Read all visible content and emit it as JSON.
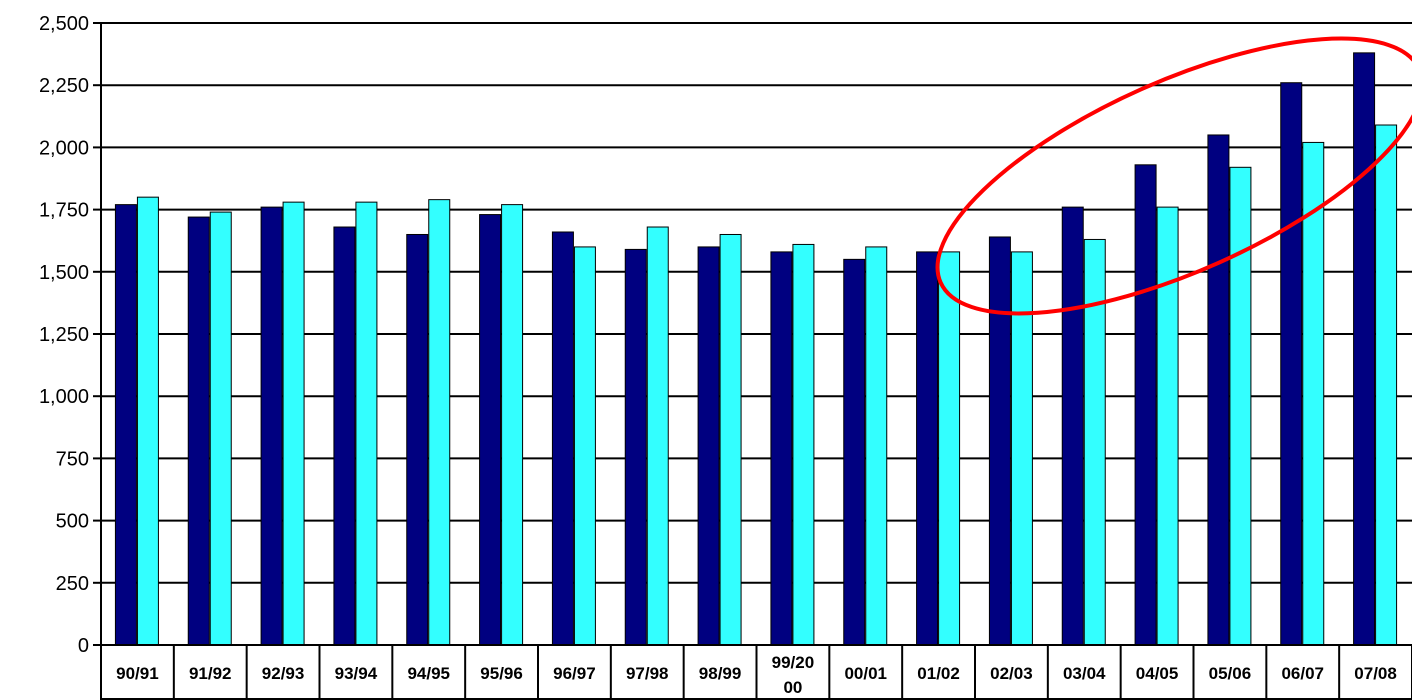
{
  "chart_data": {
    "type": "bar",
    "title": "",
    "xlabel": "",
    "ylabel": "",
    "categories": [
      "90/91",
      "91/92",
      "92/93",
      "93/94",
      "94/95",
      "95/96",
      "96/97",
      "97/98",
      "98/99",
      "99/2000",
      "00/01",
      "01/02",
      "02/03",
      "03/04",
      "04/05",
      "05/06",
      "06/07",
      "07/08"
    ],
    "category_label_lines": [
      [
        "90/91"
      ],
      [
        "91/92"
      ],
      [
        "92/93"
      ],
      [
        "93/94"
      ],
      [
        "94/95"
      ],
      [
        "95/96"
      ],
      [
        "96/97"
      ],
      [
        "97/98"
      ],
      [
        "98/99"
      ],
      [
        "99/20",
        "00"
      ],
      [
        "00/01"
      ],
      [
        "01/02"
      ],
      [
        "02/03"
      ],
      [
        "03/04"
      ],
      [
        "04/05"
      ],
      [
        "05/06"
      ],
      [
        "06/07"
      ],
      [
        "07/08"
      ]
    ],
    "series": [
      {
        "color": "#000080",
        "values": [
          1770,
          1720,
          1760,
          1680,
          1650,
          1730,
          1660,
          1590,
          1600,
          1580,
          1550,
          1580,
          1640,
          1760,
          1930,
          2050,
          2260,
          2380
        ]
      },
      {
        "color": "#33ffff",
        "values": [
          1800,
          1740,
          1780,
          1780,
          1790,
          1770,
          1600,
          1680,
          1650,
          1610,
          1600,
          1580,
          1580,
          1630,
          1760,
          1920,
          2020,
          2090
        ]
      }
    ],
    "ylim": [
      0,
      2500
    ],
    "yticks": [
      0,
      250,
      500,
      750,
      1000,
      1250,
      1500,
      1750,
      2000,
      2250,
      2500
    ],
    "ytick_labels": [
      "0",
      "250",
      "500",
      "750",
      "1,000",
      "1,250",
      "1,500",
      "1,750",
      "2,000",
      "2,250",
      "2,500"
    ],
    "grid": true,
    "legend": "none",
    "annotation": {
      "shape": "ellipse",
      "color": "#ff0000",
      "highlights": [
        "02/03",
        "03/04",
        "04/05",
        "05/06",
        "06/07",
        "07/08"
      ]
    }
  }
}
